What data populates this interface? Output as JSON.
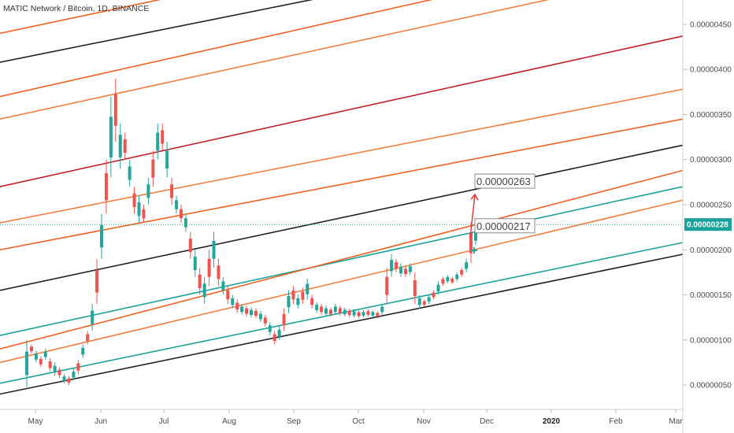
{
  "header": {
    "title": "MATIC Network / Bitcoin, 1D, BINANCE"
  },
  "chart_data": {
    "type": "candlestick",
    "symbol": "MATIC Network / Bitcoin",
    "interval": "1D",
    "exchange": "BINANCE",
    "x_ticks": [
      "May",
      "Jun",
      "Jul",
      "Aug",
      "Sep",
      "Oct",
      "Nov",
      "Dec",
      "2020",
      "Feb",
      "Mar"
    ],
    "x_tick_bold": "2020",
    "y_ticks": [
      "0.00000450",
      "0.00000400",
      "0.00000350",
      "0.00000300",
      "0.00000250",
      "0.00000200",
      "0.00000150",
      "0.00000100",
      "0.00000050"
    ],
    "ylim": [
      2.3e-07,
      4.77e-06
    ],
    "current_price": "0.00000228",
    "annotations": [
      {
        "label": "0.00000263",
        "value": 2.63e-06
      },
      {
        "label": "0.00000217",
        "value": 2.17e-06
      }
    ],
    "candles": [
      [
        1e-06,
        4.8e-07
      ],
      [
        9.5e-07,
        8.5e-07
      ],
      [
        8.8e-07,
        7.5e-07
      ],
      [
        8.2e-07,
        7e-07
      ],
      [
        9e-07,
        7.8e-07
      ],
      [
        8e-07,
        6.5e-07
      ],
      [
        7.5e-07,
        6e-07
      ],
      [
        7e-07,
        5.8e-07
      ],
      [
        6.2e-07,
        5.2e-07
      ],
      [
        6e-07,
        5e-07
      ],
      [
        6.8e-07,
        5.5e-07
      ],
      [
        7.8e-07,
        6.2e-07
      ],
      [
        9.5e-07,
        8e-07
      ],
      [
        1.1e-06,
        9.5e-07
      ],
      [
        1.4e-06,
        1.1e-06
      ],
      [
        1.9e-06,
        1.4e-06
      ],
      [
        2.4e-06,
        1.9e-06
      ],
      [
        3e-06,
        2.4e-06
      ],
      [
        3.7e-06,
        2.8e-06
      ],
      [
        3.9e-06,
        3.2e-06
      ],
      [
        3.4e-06,
        2.9e-06
      ],
      [
        3.3e-06,
        3e-06
      ],
      [
        3e-06,
        2.7e-06
      ],
      [
        2.7e-06,
        2.4e-06
      ],
      [
        2.6e-06,
        2.3e-06
      ],
      [
        2.5e-06,
        2.3e-06
      ],
      [
        2.8e-06,
        2.5e-06
      ],
      [
        3.1e-06,
        2.7e-06
      ],
      [
        3.4e-06,
        3e-06
      ],
      [
        3.4e-06,
        3.1e-06
      ],
      [
        3.2e-06,
        2.8e-06
      ],
      [
        2.8e-06,
        2.5e-06
      ],
      [
        2.6e-06,
        2.4e-06
      ],
      [
        2.5e-06,
        2.3e-06
      ],
      [
        2.4e-06,
        2.2e-06
      ],
      [
        2.2e-06,
        1.9e-06
      ],
      [
        2e-06,
        1.7e-06
      ],
      [
        1.8e-06,
        1.5e-06
      ],
      [
        1.7e-06,
        1.4e-06
      ],
      [
        2e-06,
        1.6e-06
      ],
      [
        2.2e-06,
        1.8e-06
      ],
      [
        1.9e-06,
        1.6e-06
      ],
      [
        1.7e-06,
        1.5e-06
      ],
      [
        1.6e-06,
        1.4e-06
      ],
      [
        1.5e-06,
        1.35e-06
      ],
      [
        1.45e-06,
        1.3e-06
      ],
      [
        1.4e-06,
        1.28e-06
      ],
      [
        1.38e-06,
        1.26e-06
      ],
      [
        1.36e-06,
        1.25e-06
      ],
      [
        1.35e-06,
        1.24e-06
      ],
      [
        1.32e-06,
        1.2e-06
      ],
      [
        1.28e-06,
        1.15e-06
      ],
      [
        1.2e-06,
        1.05e-06
      ],
      [
        1.1e-06,
        9.5e-07
      ],
      [
        1.15e-06,
        1e-06
      ],
      [
        1.35e-06,
        1.1e-06
      ],
      [
        1.55e-06,
        1.3e-06
      ],
      [
        1.6e-06,
        1.4e-06
      ],
      [
        1.5e-06,
        1.35e-06
      ],
      [
        1.58e-06,
        1.4e-06
      ],
      [
        1.68e-06,
        1.45e-06
      ],
      [
        1.5e-06,
        1.35e-06
      ],
      [
        1.42e-06,
        1.3e-06
      ],
      [
        1.4e-06,
        1.28e-06
      ],
      [
        1.38e-06,
        1.26e-06
      ],
      [
        1.36e-06,
        1.26e-06
      ],
      [
        1.4e-06,
        1.28e-06
      ],
      [
        1.38e-06,
        1.27e-06
      ],
      [
        1.36e-06,
        1.26e-06
      ],
      [
        1.35e-06,
        1.25e-06
      ],
      [
        1.34e-06,
        1.25e-06
      ],
      [
        1.33e-06,
        1.24e-06
      ],
      [
        1.33e-06,
        1.25e-06
      ],
      [
        1.34e-06,
        1.26e-06
      ],
      [
        1.33e-06,
        1.25e-06
      ],
      [
        1.32e-06,
        1.24e-06
      ],
      [
        1.4e-06,
        1.28e-06
      ],
      [
        1.8e-06,
        1.4e-06
      ],
      [
        1.95e-06,
        1.7e-06
      ],
      [
        1.9e-06,
        1.75e-06
      ],
      [
        1.85e-06,
        1.7e-06
      ],
      [
        1.82e-06,
        1.7e-06
      ],
      [
        1.85e-06,
        1.72e-06
      ],
      [
        1.75e-06,
        1.4e-06
      ],
      [
        1.5e-06,
        1.35e-06
      ],
      [
        1.45e-06,
        1.37e-06
      ],
      [
        1.5e-06,
        1.4e-06
      ],
      [
        1.55e-06,
        1.45e-06
      ],
      [
        1.65e-06,
        1.5e-06
      ],
      [
        1.7e-06,
        1.6e-06
      ],
      [
        1.72e-06,
        1.63e-06
      ],
      [
        1.7e-06,
        1.62e-06
      ],
      [
        1.75e-06,
        1.65e-06
      ],
      [
        1.8e-06,
        1.7e-06
      ],
      [
        1.9e-06,
        1.75e-06
      ],
      [
        2.3e-06,
        1.85e-06
      ],
      [
        2.25e-06,
        2.05e-06
      ]
    ],
    "channel_lines": [
      {
        "color": "#222222",
        "p1": [
          0.0,
          4e-07
        ],
        "p2": [
          1.0,
          1.95e-06
        ]
      },
      {
        "color": "#1aa39a",
        "p1": [
          0.0,
          5.2e-07
        ],
        "p2": [
          1.0,
          2.08e-06
        ]
      },
      {
        "color": "#1aa39a",
        "p1": [
          0.0,
          1.05e-06
        ],
        "p2": [
          1.0,
          2.7e-06
        ]
      },
      {
        "color": "#f08040",
        "p1": [
          0.0,
          7.5e-07
        ],
        "p2": [
          1.0,
          2.55e-06
        ]
      },
      {
        "color": "#f06020",
        "p1": [
          0.0,
          9e-07
        ],
        "p2": [
          1.0,
          2.88e-06
        ]
      },
      {
        "color": "#222222",
        "p1": [
          0.0,
          1.55e-06
        ],
        "p2": [
          1.0,
          3.16e-06
        ]
      },
      {
        "color": "#f06020",
        "p1": [
          0.0,
          2e-06
        ],
        "p2": [
          1.0,
          3.45e-06
        ]
      },
      {
        "color": "#f08040",
        "p1": [
          0.0,
          2.3e-06
        ],
        "p2": [
          1.0,
          3.78e-06
        ]
      },
      {
        "color": "#c0202a",
        "p1": [
          0.0,
          2.7e-06
        ],
        "p2": [
          1.0,
          4.37e-06
        ]
      },
      {
        "color": "#f08040",
        "p1": [
          0.0,
          3.45e-06
        ],
        "p2": [
          1.0,
          5.1e-06
        ]
      },
      {
        "color": "#f06020",
        "p1": [
          0.0,
          3.7e-06
        ],
        "p2": [
          1.0,
          5.4e-06
        ]
      },
      {
        "color": "#222222",
        "p1": [
          0.0,
          4.08e-06
        ],
        "p2": [
          1.0,
          5.6e-06
        ]
      },
      {
        "color": "#f06020",
        "p1": [
          0.0,
          4.4e-06
        ],
        "p2": [
          1.0,
          6e-06
        ]
      },
      {
        "color": "#f08040",
        "p1": [
          0.0,
          4.8e-06
        ],
        "p2": [
          1.0,
          6.4e-06
        ]
      }
    ],
    "colors": {
      "up": "#26a69a",
      "down": "#ef5350",
      "price_label_bg": "#1aa39a",
      "arrow": "#e53935"
    }
  }
}
